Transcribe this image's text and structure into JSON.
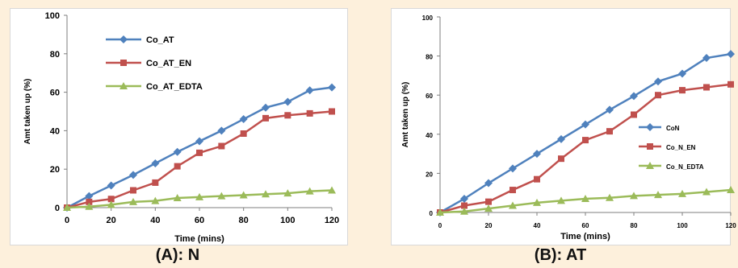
{
  "chart_data": [
    {
      "type": "line",
      "caption": "(A): N",
      "xlabel": "Time (mins)",
      "ylabel": "Amt taken up (%)",
      "x": [
        0,
        10,
        20,
        30,
        40,
        50,
        60,
        70,
        80,
        90,
        100,
        110,
        120
      ],
      "xticks": [
        0,
        20,
        40,
        60,
        80,
        100,
        120
      ],
      "yticks": [
        0,
        20,
        40,
        60,
        80,
        100
      ],
      "xlim": [
        0,
        120
      ],
      "ylim": [
        0,
        100
      ],
      "grid": false,
      "legend_position": "top-left",
      "series": [
        {
          "name": "Co_AT",
          "color": "#4f81bd",
          "marker": "diamond",
          "values": [
            0,
            6,
            11.5,
            17,
            23,
            29,
            34.5,
            40,
            46,
            52,
            55,
            61,
            62.5
          ]
        },
        {
          "name": "Co_AT_EN",
          "color": "#c0504d",
          "marker": "square",
          "values": [
            0,
            3,
            4.5,
            9,
            13,
            21.5,
            28.5,
            32,
            38.5,
            46.5,
            48,
            49,
            50
          ]
        },
        {
          "name": "Co_AT_EDTA",
          "color": "#9bbb59",
          "marker": "triangle",
          "values": [
            0,
            0.5,
            1.5,
            3,
            3.5,
            5,
            5.5,
            6,
            6.5,
            7,
            7.5,
            8.5,
            9
          ]
        }
      ]
    },
    {
      "type": "line",
      "caption": "(B): AT",
      "xlabel": "Time (mins)",
      "ylabel": "Amt taken up (%)",
      "x": [
        0,
        10,
        20,
        30,
        40,
        50,
        60,
        70,
        80,
        90,
        100,
        110,
        120
      ],
      "xticks": [
        0,
        20,
        40,
        60,
        80,
        100,
        120
      ],
      "yticks": [
        0,
        20,
        40,
        60,
        80,
        100
      ],
      "xlim": [
        0,
        120
      ],
      "ylim": [
        0,
        100
      ],
      "grid": false,
      "legend_position": "right",
      "series": [
        {
          "name": "CoN",
          "color": "#4f81bd",
          "marker": "diamond",
          "values": [
            0,
            7,
            15,
            22.5,
            30,
            37.5,
            45,
            52.5,
            59.5,
            67,
            71,
            79,
            81
          ]
        },
        {
          "name": "Co_N_EN",
          "color": "#c0504d",
          "marker": "square",
          "values": [
            0,
            3.5,
            5.5,
            11.5,
            17,
            27.5,
            37,
            41.5,
            50,
            60,
            62.5,
            64,
            65.5
          ]
        },
        {
          "name": "Co_N_EDTA",
          "color": "#9bbb59",
          "marker": "triangle",
          "values": [
            0,
            0.5,
            2,
            3.5,
            5,
            6,
            7,
            7.5,
            8.5,
            9,
            9.5,
            10.5,
            11.5
          ]
        }
      ]
    }
  ]
}
